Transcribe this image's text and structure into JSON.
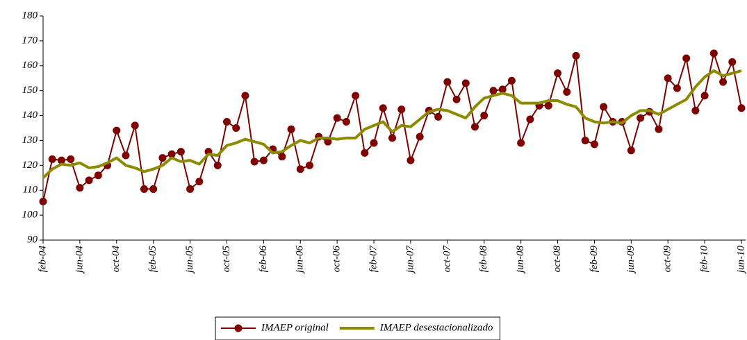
{
  "chart_data": {
    "type": "line",
    "categories": [
      "feb-04",
      null,
      null,
      null,
      "jun-04",
      null,
      null,
      null,
      "oct-04",
      null,
      null,
      null,
      "feb-05",
      null,
      null,
      null,
      "jun-05",
      null,
      null,
      null,
      "oct-05",
      null,
      null,
      null,
      "feb-06",
      null,
      null,
      null,
      "jun-06",
      null,
      null,
      null,
      "oct-06",
      null,
      null,
      null,
      "feb-07",
      null,
      null,
      null,
      "jun-07",
      null,
      null,
      null,
      "oct-07",
      null,
      null,
      null,
      "feb-08",
      null,
      null,
      null,
      "jun-08",
      null,
      null,
      null,
      "oct-08",
      null,
      null,
      null,
      "feb-09",
      null,
      null,
      null,
      "jun-09",
      null,
      null,
      null,
      "oct-09",
      null,
      null,
      null,
      "feb-10",
      null,
      null,
      null,
      "jun-10"
    ],
    "series": [
      {
        "name": "IMAEP original",
        "color": "#800000",
        "marker": true,
        "values": [
          105.5,
          122.5,
          122,
          122.5,
          111,
          114,
          116,
          120,
          134,
          124,
          136,
          110.5,
          110.5,
          123,
          124.5,
          125.5,
          110.5,
          113.5,
          125.5,
          120,
          137.5,
          135,
          148,
          121.5,
          122,
          126.5,
          123.5,
          134.5,
          118.5,
          120,
          131.5,
          129.5,
          139,
          137.5,
          148,
          125,
          129,
          143,
          131,
          142.5,
          122,
          131.5,
          142,
          139.5,
          153.5,
          146.5,
          153,
          135.5,
          140,
          150,
          150.5,
          154,
          129,
          138.5,
          144,
          144,
          157,
          149.5,
          164,
          130,
          128.5,
          143.5,
          137.5,
          137.5,
          126,
          139,
          141.5,
          134.5,
          155,
          151,
          163,
          142,
          148,
          165,
          153.5,
          161.5,
          143
        ]
      },
      {
        "name": "IMAEP desestacionalizado",
        "color": "#8b8b00",
        "marker": false,
        "values": [
          115,
          118.5,
          120.5,
          120,
          121,
          119,
          119.5,
          121,
          123,
          120,
          119,
          117.5,
          118.5,
          120,
          123,
          121.5,
          122,
          120.5,
          124.5,
          124,
          128,
          129,
          130.5,
          129.5,
          128.5,
          125,
          125.5,
          128,
          130,
          129,
          131,
          131,
          130.5,
          131,
          131,
          134.5,
          136,
          137.5,
          133.5,
          136,
          135.5,
          138.5,
          141.5,
          142.5,
          142,
          140.5,
          139,
          143.5,
          147,
          148,
          149,
          148,
          145,
          145,
          145,
          146,
          146,
          144.5,
          143.5,
          139,
          137.5,
          137,
          137.5,
          137,
          140,
          142,
          142,
          140.5,
          142.5,
          144.5,
          146.5,
          151.5,
          155.5,
          158,
          156,
          157,
          158
        ]
      }
    ],
    "ylim": [
      90,
      180
    ],
    "yticks": [
      90,
      100,
      110,
      120,
      130,
      140,
      150,
      160,
      170,
      180
    ],
    "grid": false,
    "legend": "bottom"
  }
}
